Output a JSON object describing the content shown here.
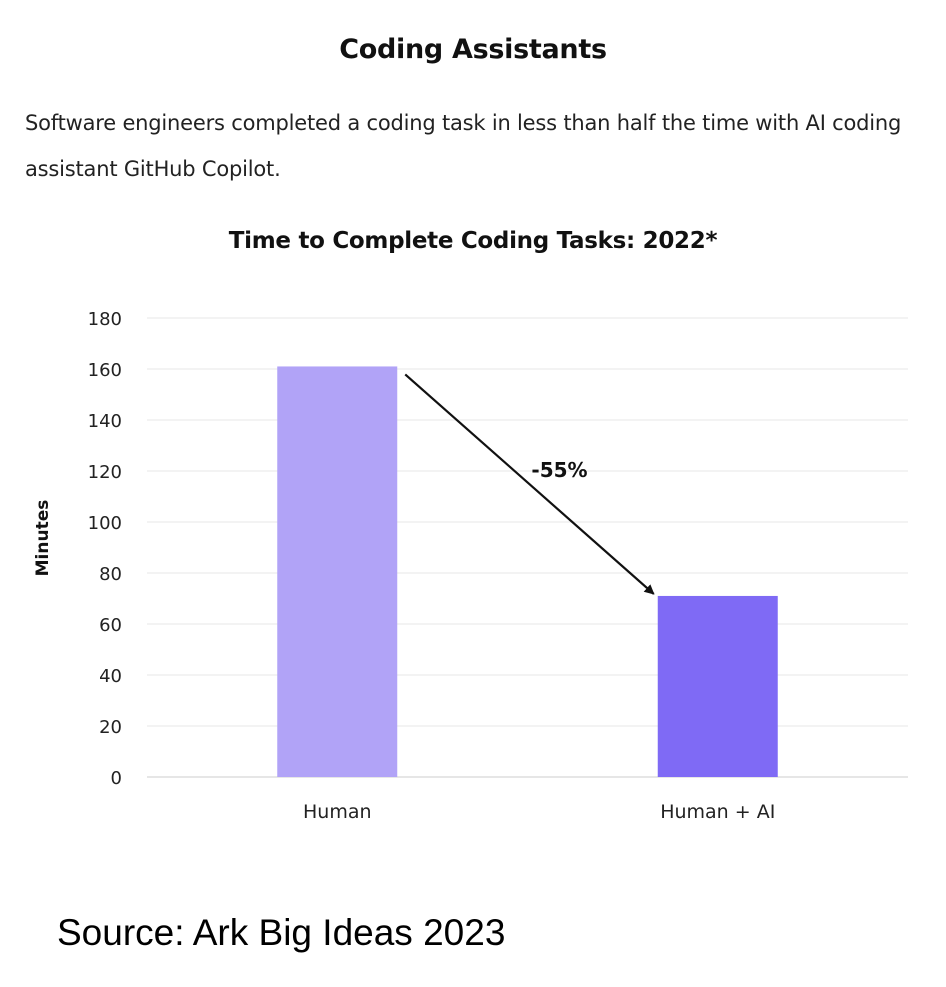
{
  "header": {
    "title": "Coding Assistants",
    "description": "Software engineers completed a coding task in less than half the time with AI coding assistant GitHub Copilot."
  },
  "footer": {
    "source": "Source: Ark Big Ideas 2023"
  },
  "chart_data": {
    "type": "bar",
    "title": "Time to Complete Coding Tasks: 2022*",
    "ylabel": "Minutes",
    "xlabel": "",
    "categories": [
      "Human",
      "Human + AI"
    ],
    "values": [
      161,
      71
    ],
    "ylim": [
      0,
      180
    ],
    "yticks": [
      0,
      20,
      40,
      60,
      80,
      100,
      120,
      140,
      160,
      180
    ],
    "grid": true,
    "colors": [
      "#b1a3f7",
      "#7f6af5"
    ],
    "annotation": {
      "text": "-55%",
      "from": "Human",
      "to": "Human + AI"
    }
  }
}
